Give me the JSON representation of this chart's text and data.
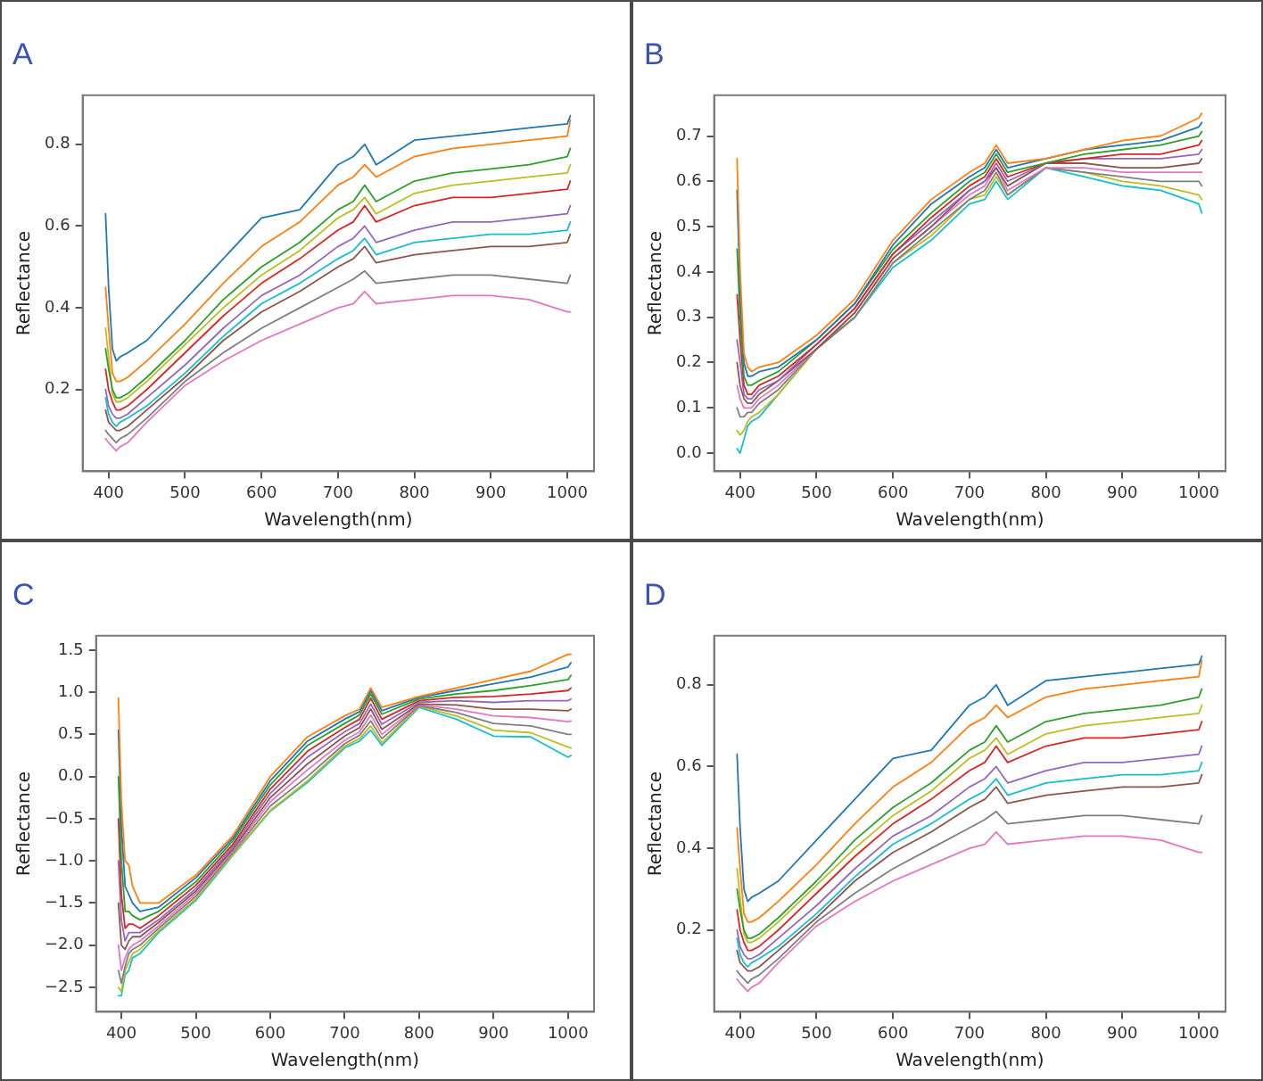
{
  "chart_data": [
    {
      "type": "line",
      "title": "A",
      "xlabel": "Wavelength(nm)",
      "ylabel": "Reflectance",
      "xlim": [
        366,
        1035
      ],
      "ylim": [
        0.0,
        0.92
      ],
      "xticks": [
        400,
        500,
        600,
        700,
        800,
        900,
        1000
      ],
      "yticks": [
        0.2,
        0.4,
        0.6,
        0.8
      ],
      "x": [
        396,
        400,
        405,
        410,
        415,
        425,
        450,
        500,
        550,
        600,
        650,
        700,
        720,
        735,
        750,
        800,
        850,
        900,
        950,
        1000,
        1004
      ],
      "series": [
        {
          "color": "#1f77b4",
          "values": [
            0.63,
            0.45,
            0.3,
            0.27,
            0.28,
            0.29,
            0.32,
            0.42,
            0.52,
            0.62,
            0.64,
            0.75,
            0.77,
            0.8,
            0.75,
            0.81,
            0.82,
            0.83,
            0.84,
            0.85,
            0.87
          ]
        },
        {
          "color": "#ff7f0e",
          "values": [
            0.45,
            0.35,
            0.24,
            0.22,
            0.22,
            0.23,
            0.27,
            0.36,
            0.46,
            0.55,
            0.61,
            0.7,
            0.72,
            0.75,
            0.72,
            0.77,
            0.79,
            0.8,
            0.81,
            0.82,
            0.86
          ]
        },
        {
          "color": "#2ca02c",
          "values": [
            0.3,
            0.25,
            0.2,
            0.18,
            0.18,
            0.19,
            0.23,
            0.32,
            0.42,
            0.5,
            0.56,
            0.64,
            0.66,
            0.7,
            0.66,
            0.71,
            0.73,
            0.74,
            0.75,
            0.77,
            0.79
          ]
        },
        {
          "color": "#bcbd22",
          "values": [
            0.35,
            0.28,
            0.19,
            0.17,
            0.17,
            0.18,
            0.22,
            0.31,
            0.4,
            0.48,
            0.54,
            0.62,
            0.64,
            0.67,
            0.63,
            0.68,
            0.7,
            0.71,
            0.72,
            0.73,
            0.75
          ]
        },
        {
          "color": "#d62728",
          "values": [
            0.25,
            0.2,
            0.17,
            0.15,
            0.15,
            0.16,
            0.2,
            0.29,
            0.38,
            0.46,
            0.52,
            0.59,
            0.61,
            0.65,
            0.61,
            0.65,
            0.67,
            0.67,
            0.68,
            0.69,
            0.71
          ]
        },
        {
          "color": "#9467bd",
          "values": [
            0.2,
            0.16,
            0.14,
            0.13,
            0.13,
            0.14,
            0.18,
            0.26,
            0.35,
            0.43,
            0.48,
            0.55,
            0.57,
            0.6,
            0.56,
            0.59,
            0.61,
            0.61,
            0.62,
            0.63,
            0.65
          ]
        },
        {
          "color": "#17becf",
          "values": [
            0.18,
            0.14,
            0.12,
            0.11,
            0.12,
            0.13,
            0.16,
            0.24,
            0.33,
            0.41,
            0.46,
            0.52,
            0.54,
            0.57,
            0.53,
            0.56,
            0.57,
            0.58,
            0.58,
            0.59,
            0.61
          ]
        },
        {
          "color": "#8c564b",
          "values": [
            0.15,
            0.12,
            0.11,
            0.1,
            0.1,
            0.11,
            0.15,
            0.23,
            0.32,
            0.39,
            0.44,
            0.5,
            0.52,
            0.55,
            0.51,
            0.53,
            0.54,
            0.55,
            0.55,
            0.56,
            0.58
          ]
        },
        {
          "color": "#7f7f7f",
          "values": [
            0.1,
            0.09,
            0.08,
            0.07,
            0.08,
            0.09,
            0.13,
            0.22,
            0.29,
            0.35,
            0.4,
            0.45,
            0.47,
            0.49,
            0.46,
            0.47,
            0.48,
            0.48,
            0.47,
            0.46,
            0.48
          ]
        },
        {
          "color": "#e377c2",
          "values": [
            0.08,
            0.07,
            0.06,
            0.05,
            0.06,
            0.07,
            0.12,
            0.21,
            0.27,
            0.32,
            0.36,
            0.4,
            0.41,
            0.44,
            0.41,
            0.42,
            0.43,
            0.43,
            0.42,
            0.39,
            0.39
          ]
        }
      ]
    },
    {
      "type": "line",
      "title": "B",
      "xlabel": "Wavelength(nm)",
      "ylabel": "Reflectance",
      "xlim": [
        366,
        1035
      ],
      "ylim": [
        -0.04,
        0.79
      ],
      "xticks": [
        400,
        500,
        600,
        700,
        800,
        900,
        1000
      ],
      "yticks": [
        {
          "value": 0,
          "label": "0.0"
        },
        0.1,
        0.2,
        0.3,
        0.4,
        0.5,
        0.6,
        0.7
      ],
      "x": [
        396,
        400,
        405,
        410,
        415,
        425,
        450,
        500,
        550,
        600,
        650,
        700,
        720,
        735,
        750,
        800,
        850,
        900,
        950,
        1000,
        1004
      ],
      "series": [
        {
          "color": "#ff7f0e",
          "values": [
            0.65,
            0.4,
            0.22,
            0.19,
            0.18,
            0.19,
            0.2,
            0.26,
            0.34,
            0.47,
            0.56,
            0.62,
            0.64,
            0.68,
            0.64,
            0.65,
            0.67,
            0.69,
            0.7,
            0.74,
            0.75
          ]
        },
        {
          "color": "#1f77b4",
          "values": [
            0.58,
            0.35,
            0.2,
            0.17,
            0.17,
            0.18,
            0.19,
            0.25,
            0.33,
            0.46,
            0.55,
            0.61,
            0.63,
            0.67,
            0.63,
            0.65,
            0.67,
            0.68,
            0.69,
            0.72,
            0.73
          ]
        },
        {
          "color": "#2ca02c",
          "values": [
            0.45,
            0.3,
            0.17,
            0.15,
            0.15,
            0.16,
            0.18,
            0.25,
            0.33,
            0.45,
            0.53,
            0.6,
            0.62,
            0.66,
            0.62,
            0.64,
            0.66,
            0.67,
            0.68,
            0.7,
            0.71
          ]
        },
        {
          "color": "#d62728",
          "values": [
            0.35,
            0.25,
            0.15,
            0.13,
            0.13,
            0.15,
            0.17,
            0.24,
            0.32,
            0.44,
            0.52,
            0.59,
            0.61,
            0.65,
            0.61,
            0.64,
            0.65,
            0.66,
            0.66,
            0.68,
            0.69
          ]
        },
        {
          "color": "#9467bd",
          "values": [
            0.25,
            0.2,
            0.13,
            0.12,
            0.12,
            0.14,
            0.16,
            0.24,
            0.32,
            0.44,
            0.51,
            0.58,
            0.6,
            0.64,
            0.6,
            0.64,
            0.65,
            0.65,
            0.65,
            0.66,
            0.67
          ]
        },
        {
          "color": "#8c564b",
          "values": [
            0.2,
            0.15,
            0.12,
            0.11,
            0.11,
            0.13,
            0.16,
            0.23,
            0.31,
            0.43,
            0.5,
            0.58,
            0.6,
            0.63,
            0.59,
            0.64,
            0.64,
            0.63,
            0.63,
            0.64,
            0.65
          ]
        },
        {
          "color": "#e377c2",
          "values": [
            0.15,
            0.12,
            0.1,
            0.1,
            0.1,
            0.12,
            0.15,
            0.23,
            0.31,
            0.43,
            0.5,
            0.57,
            0.59,
            0.63,
            0.58,
            0.63,
            0.63,
            0.62,
            0.62,
            0.62,
            0.62
          ]
        },
        {
          "color": "#7f7f7f",
          "values": [
            0.1,
            0.08,
            0.08,
            0.09,
            0.09,
            0.11,
            0.14,
            0.23,
            0.3,
            0.42,
            0.49,
            0.56,
            0.58,
            0.62,
            0.57,
            0.63,
            0.62,
            0.61,
            0.6,
            0.6,
            0.59
          ]
        },
        {
          "color": "#bcbd22",
          "values": [
            0.05,
            0.04,
            0.05,
            0.07,
            0.08,
            0.09,
            0.13,
            0.23,
            0.3,
            0.42,
            0.48,
            0.56,
            0.57,
            0.61,
            0.57,
            0.63,
            0.62,
            0.6,
            0.59,
            0.57,
            0.56
          ]
        },
        {
          "color": "#17becf",
          "values": [
            0.01,
            0.0,
            0.03,
            0.06,
            0.07,
            0.08,
            0.13,
            0.23,
            0.3,
            0.41,
            0.47,
            0.55,
            0.56,
            0.6,
            0.56,
            0.63,
            0.61,
            0.59,
            0.58,
            0.55,
            0.53
          ]
        }
      ]
    },
    {
      "type": "line",
      "title": "C",
      "xlabel": "Wavelength(nm)",
      "ylabel": "Reflectance",
      "xlim": [
        366,
        1035
      ],
      "ylim": [
        -2.79,
        1.67
      ],
      "xticks": [
        400,
        500,
        600,
        700,
        800,
        900,
        1000
      ],
      "yticks": [
        {
          "value": -2.5,
          "label": "−2.5"
        },
        {
          "value": -2,
          "label": "−2.0"
        },
        {
          "value": -1.5,
          "label": "−1.5"
        },
        {
          "value": -1,
          "label": "−1.0"
        },
        {
          "value": -0.5,
          "label": "−0.5"
        },
        {
          "value": 0,
          "label": "0.0"
        },
        0.5,
        {
          "value": 1,
          "label": "1.0"
        },
        1.5
      ],
      "x": [
        396,
        400,
        405,
        410,
        415,
        425,
        450,
        500,
        550,
        600,
        650,
        700,
        720,
        735,
        750,
        800,
        850,
        900,
        950,
        1000,
        1004
      ],
      "series": [
        {
          "color": "#ff7f0e",
          "values": [
            0.93,
            -0.3,
            -1.0,
            -1.05,
            -1.3,
            -1.5,
            -1.5,
            -1.17,
            -0.7,
            0.0,
            0.47,
            0.72,
            0.8,
            1.05,
            0.82,
            0.95,
            1.05,
            1.15,
            1.25,
            1.45,
            1.45
          ]
        },
        {
          "color": "#1f77b4",
          "values": [
            0.55,
            -0.6,
            -1.3,
            -1.4,
            -1.5,
            -1.6,
            -1.55,
            -1.2,
            -0.73,
            -0.05,
            0.42,
            0.68,
            0.77,
            1.02,
            0.78,
            0.94,
            1.02,
            1.1,
            1.18,
            1.3,
            1.35
          ]
        },
        {
          "color": "#2ca02c",
          "values": [
            0.0,
            -1.0,
            -1.6,
            -1.6,
            -1.65,
            -1.7,
            -1.6,
            -1.25,
            -0.76,
            -0.1,
            0.37,
            0.63,
            0.73,
            0.98,
            0.74,
            0.92,
            0.98,
            1.02,
            1.08,
            1.15,
            1.2
          ]
        },
        {
          "color": "#d62728",
          "values": [
            -0.5,
            -1.4,
            -1.8,
            -1.75,
            -1.75,
            -1.8,
            -1.65,
            -1.29,
            -0.8,
            -0.15,
            0.3,
            0.58,
            0.68,
            0.93,
            0.68,
            0.9,
            0.94,
            0.95,
            0.98,
            1.02,
            1.05
          ]
        },
        {
          "color": "#9467bd",
          "values": [
            -1.0,
            -1.7,
            -1.95,
            -1.85,
            -1.85,
            -1.85,
            -1.7,
            -1.33,
            -0.83,
            -0.2,
            0.23,
            0.53,
            0.63,
            0.86,
            0.62,
            0.88,
            0.9,
            0.88,
            0.9,
            0.9,
            0.92
          ]
        },
        {
          "color": "#8c564b",
          "values": [
            -1.5,
            -2.0,
            -2.05,
            -1.95,
            -1.9,
            -1.9,
            -1.73,
            -1.36,
            -0.86,
            -0.25,
            0.15,
            0.48,
            0.58,
            0.8,
            0.56,
            0.86,
            0.85,
            0.8,
            0.8,
            0.78,
            0.8
          ]
        },
        {
          "color": "#e377c2",
          "values": [
            -2.0,
            -2.3,
            -2.15,
            -2.05,
            -2.0,
            -1.95,
            -1.77,
            -1.39,
            -0.88,
            -0.3,
            0.08,
            0.43,
            0.53,
            0.73,
            0.5,
            0.85,
            0.8,
            0.72,
            0.7,
            0.65,
            0.66
          ]
        },
        {
          "color": "#7f7f7f",
          "values": [
            -2.3,
            -2.45,
            -2.25,
            -2.1,
            -2.05,
            -2.0,
            -1.8,
            -1.42,
            -0.9,
            -0.35,
            0.0,
            0.39,
            0.49,
            0.66,
            0.45,
            0.84,
            0.76,
            0.63,
            0.6,
            0.5,
            0.5
          ]
        },
        {
          "color": "#bcbd22",
          "values": [
            -2.5,
            -2.55,
            -2.3,
            -2.2,
            -2.1,
            -2.05,
            -1.83,
            -1.45,
            -0.92,
            -0.4,
            -0.05,
            0.36,
            0.45,
            0.6,
            0.4,
            0.83,
            0.72,
            0.55,
            0.52,
            0.35,
            0.34
          ]
        },
        {
          "color": "#17becf",
          "values": [
            -2.6,
            -2.6,
            -2.35,
            -2.3,
            -2.15,
            -2.1,
            -1.85,
            -1.47,
            -0.93,
            -0.41,
            -0.07,
            0.34,
            0.42,
            0.55,
            0.37,
            0.82,
            0.68,
            0.48,
            0.47,
            0.23,
            0.25
          ]
        }
      ]
    },
    {
      "type": "line",
      "title": "D",
      "xlabel": "Wavelength(nm)",
      "ylabel": "Reflectance",
      "xlim": [
        366,
        1035
      ],
      "ylim": [
        0.0,
        0.92
      ],
      "xticks": [
        400,
        500,
        600,
        700,
        800,
        900,
        1000
      ],
      "yticks": [
        0.2,
        0.4,
        0.6,
        0.8
      ],
      "x": [
        396,
        400,
        405,
        410,
        415,
        425,
        450,
        500,
        550,
        600,
        650,
        700,
        720,
        735,
        750,
        800,
        850,
        900,
        950,
        1000,
        1004
      ],
      "series": [
        {
          "color": "#1f77b4",
          "values": [
            0.63,
            0.45,
            0.3,
            0.27,
            0.28,
            0.29,
            0.32,
            0.42,
            0.52,
            0.62,
            0.64,
            0.75,
            0.77,
            0.8,
            0.75,
            0.81,
            0.82,
            0.83,
            0.84,
            0.85,
            0.87
          ]
        },
        {
          "color": "#ff7f0e",
          "values": [
            0.45,
            0.35,
            0.24,
            0.22,
            0.22,
            0.23,
            0.27,
            0.36,
            0.46,
            0.55,
            0.61,
            0.7,
            0.72,
            0.75,
            0.72,
            0.77,
            0.79,
            0.8,
            0.81,
            0.82,
            0.86
          ]
        },
        {
          "color": "#2ca02c",
          "values": [
            0.3,
            0.25,
            0.2,
            0.18,
            0.18,
            0.19,
            0.23,
            0.32,
            0.42,
            0.5,
            0.56,
            0.64,
            0.66,
            0.7,
            0.66,
            0.71,
            0.73,
            0.74,
            0.75,
            0.77,
            0.79
          ]
        },
        {
          "color": "#bcbd22",
          "values": [
            0.35,
            0.28,
            0.19,
            0.17,
            0.17,
            0.18,
            0.22,
            0.31,
            0.4,
            0.48,
            0.54,
            0.62,
            0.64,
            0.67,
            0.63,
            0.68,
            0.7,
            0.71,
            0.72,
            0.73,
            0.75
          ]
        },
        {
          "color": "#d62728",
          "values": [
            0.25,
            0.2,
            0.17,
            0.15,
            0.15,
            0.16,
            0.2,
            0.29,
            0.38,
            0.46,
            0.52,
            0.59,
            0.61,
            0.65,
            0.61,
            0.65,
            0.67,
            0.67,
            0.68,
            0.69,
            0.71
          ]
        },
        {
          "color": "#9467bd",
          "values": [
            0.2,
            0.16,
            0.14,
            0.13,
            0.13,
            0.14,
            0.18,
            0.26,
            0.35,
            0.43,
            0.48,
            0.55,
            0.57,
            0.6,
            0.56,
            0.59,
            0.61,
            0.61,
            0.62,
            0.63,
            0.65
          ]
        },
        {
          "color": "#17becf",
          "values": [
            0.18,
            0.14,
            0.12,
            0.11,
            0.12,
            0.13,
            0.16,
            0.24,
            0.33,
            0.41,
            0.46,
            0.52,
            0.54,
            0.57,
            0.53,
            0.56,
            0.57,
            0.58,
            0.58,
            0.59,
            0.61
          ]
        },
        {
          "color": "#8c564b",
          "values": [
            0.15,
            0.12,
            0.11,
            0.1,
            0.1,
            0.11,
            0.15,
            0.23,
            0.32,
            0.39,
            0.44,
            0.5,
            0.52,
            0.55,
            0.51,
            0.53,
            0.54,
            0.55,
            0.55,
            0.56,
            0.58
          ]
        },
        {
          "color": "#7f7f7f",
          "values": [
            0.1,
            0.09,
            0.08,
            0.07,
            0.08,
            0.09,
            0.13,
            0.22,
            0.29,
            0.35,
            0.4,
            0.45,
            0.47,
            0.49,
            0.46,
            0.47,
            0.48,
            0.48,
            0.47,
            0.46,
            0.48
          ]
        },
        {
          "color": "#e377c2",
          "values": [
            0.08,
            0.07,
            0.06,
            0.05,
            0.06,
            0.07,
            0.12,
            0.21,
            0.27,
            0.32,
            0.36,
            0.4,
            0.41,
            0.44,
            0.41,
            0.42,
            0.43,
            0.43,
            0.42,
            0.39,
            0.39
          ]
        }
      ]
    }
  ]
}
